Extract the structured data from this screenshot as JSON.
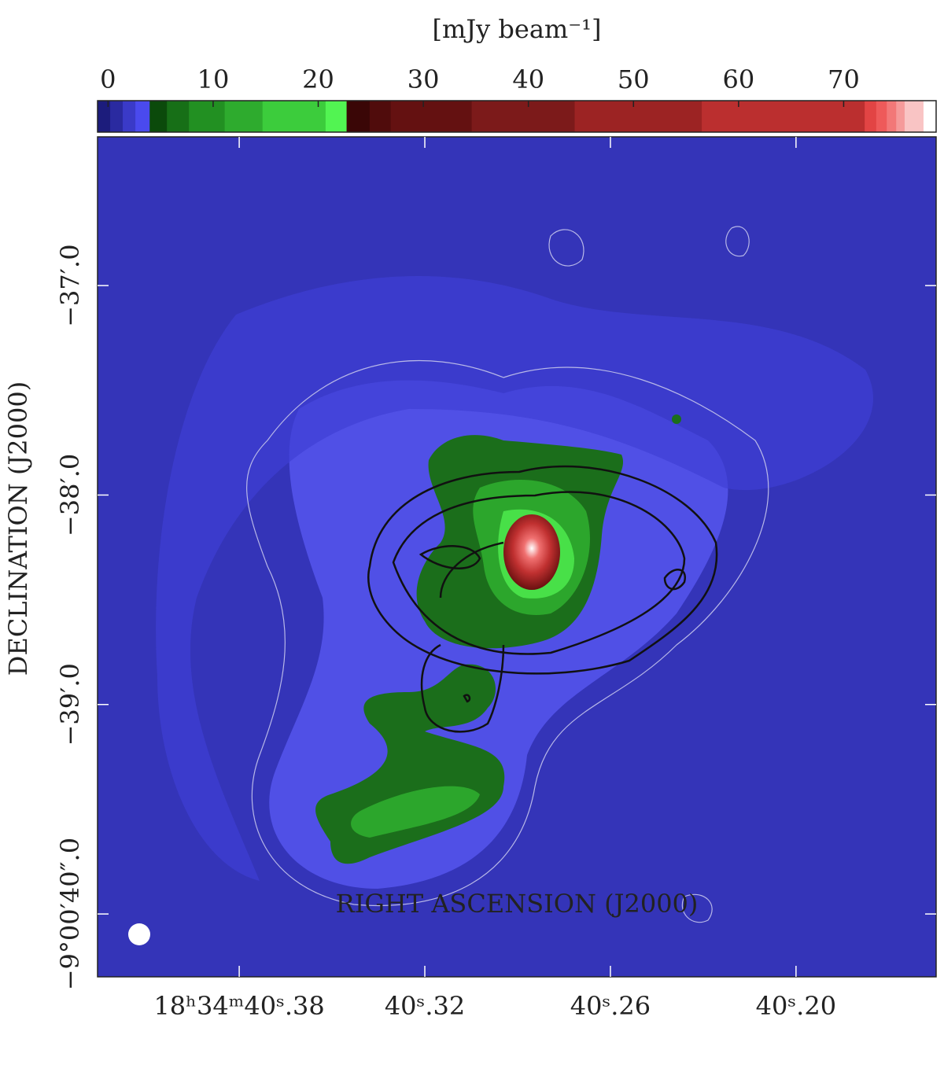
{
  "chart_data": {
    "type": "image",
    "xlabel": "RIGHT ASCENSION (J2000)",
    "ylabel": "DECLINATION (J2000)",
    "xlim": [
      40.4258,
      40.1547
    ],
    "xticks": [
      {
        "value": 40.38,
        "label": "18ʰ34ᵐ40ˢ.38"
      },
      {
        "value": 40.32,
        "label": "40ˢ.32"
      },
      {
        "value": 40.26,
        "label": "40ˢ.26"
      },
      {
        "value": 40.2,
        "label": "40ˢ.20"
      }
    ],
    "ylim": [
      -40.3,
      -36.29
    ],
    "yticks": [
      {
        "value": -37,
        "label": "−37′.0"
      },
      {
        "value": -38,
        "label": "−38′.0"
      },
      {
        "value": -39,
        "label": "−39′.0"
      },
      {
        "value": -40,
        "label": "−9°00′40″.0"
      }
    ],
    "colorbar": {
      "label": "[mJy beam⁻¹]",
      "lim": [
        -1,
        78.8
      ],
      "ticks": [
        0,
        10,
        20,
        30,
        40,
        50,
        60,
        70
      ],
      "bounds": [
        -1,
        0.2,
        1.4,
        2.6,
        3.96,
        5.6,
        7.7,
        11.1,
        14.7,
        20.7,
        22.7,
        24.9,
        26.9,
        34.6,
        44.4,
        56.5,
        72.0,
        73.1,
        74.1,
        75.0,
        75.8,
        77.6,
        78.8
      ],
      "colors": [
        "#1c1c7c",
        "#2a2aa0",
        "#3a3ac8",
        "#4a4aee",
        "#0b4a0b",
        "#176f17",
        "#229022",
        "#2eab2e",
        "#3ccc3c",
        "#52f452",
        "#3a0606",
        "#500c0c",
        "#641111",
        "#7c1a1a",
        "#9c2323",
        "#bb2f2f",
        "#e24444",
        "#ee5a5a",
        "#f27878",
        "#f59a9a",
        "#f9c4c4",
        "#ffffff"
      ]
    }
  }
}
